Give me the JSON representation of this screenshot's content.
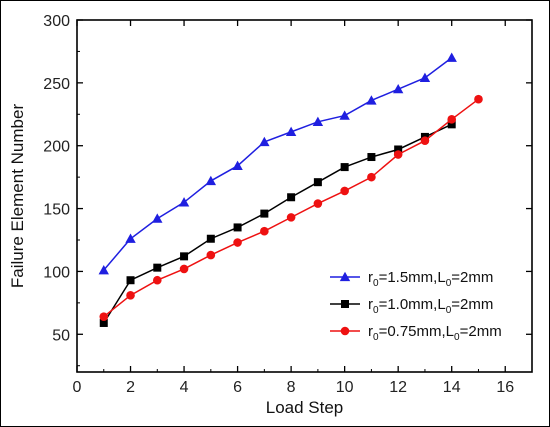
{
  "chart_data": {
    "type": "line",
    "xlabel": "Load Step",
    "ylabel": "Failure Element Number",
    "xlim": [
      0,
      17
    ],
    "ylim": [
      20,
      300
    ],
    "xticks": [
      0,
      2,
      4,
      6,
      8,
      10,
      12,
      14,
      16
    ],
    "yticks": [
      50,
      100,
      150,
      200,
      250,
      300
    ],
    "grid": false,
    "legend_position": "bottom-right",
    "series": [
      {
        "name": "r0=1.5mm,L0=2mm",
        "legend_parts": {
          "r": "r",
          "r_sub": "0",
          "r_val": "=1.5mm,L",
          "l_sub": "0",
          "l_val": "=2mm"
        },
        "color": "#1f1fe0",
        "marker": "triangle",
        "x": [
          1,
          2,
          3,
          4,
          5,
          6,
          7,
          8,
          9,
          10,
          11,
          12,
          13,
          14
        ],
        "y": [
          101,
          126,
          142,
          155,
          172,
          184,
          203,
          211,
          219,
          224,
          236,
          245,
          254,
          270
        ]
      },
      {
        "name": "r0=1.0mm,L0=2mm",
        "legend_parts": {
          "r": "r",
          "r_sub": "0",
          "r_val": "=1.0mm,L",
          "l_sub": "0",
          "l_val": "=2mm"
        },
        "color": "#000000",
        "marker": "square",
        "x": [
          1,
          2,
          3,
          4,
          5,
          6,
          7,
          8,
          9,
          10,
          11,
          12,
          13,
          14
        ],
        "y": [
          59,
          93,
          103,
          112,
          126,
          135,
          146,
          159,
          171,
          183,
          191,
          197,
          207,
          217
        ]
      },
      {
        "name": "r0=0.75mm,L0=2mm",
        "legend_parts": {
          "r": "r",
          "r_sub": "0",
          "r_val": "=0.75mm,L",
          "l_sub": "0",
          "l_val": "=2mm"
        },
        "color": "#ee1111",
        "marker": "circle",
        "x": [
          1,
          2,
          3,
          4,
          5,
          6,
          7,
          8,
          9,
          10,
          11,
          12,
          13,
          14,
          15
        ],
        "y": [
          64,
          81,
          93,
          102,
          113,
          123,
          132,
          143,
          154,
          164,
          175,
          193,
          204,
          221,
          237
        ]
      }
    ]
  }
}
